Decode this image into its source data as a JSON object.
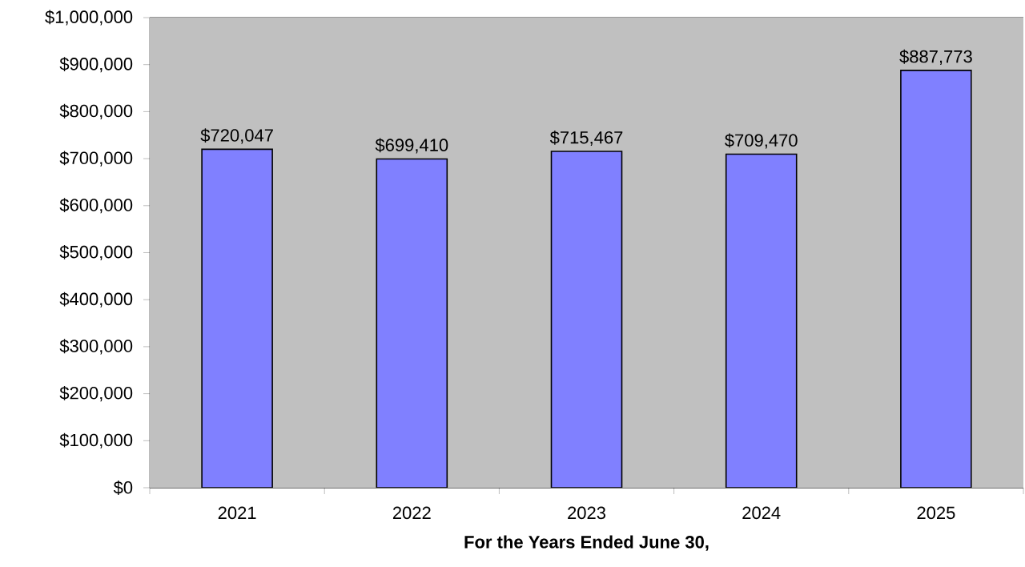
{
  "chart_data": {
    "type": "bar",
    "xlabel": "For the Years Ended June 30,",
    "categories": [
      "2021",
      "2022",
      "2023",
      "2024",
      "2025"
    ],
    "values": [
      720047,
      699410,
      715467,
      709470,
      887773
    ],
    "value_labels": [
      "$720,047",
      "$699,410",
      "$715,467",
      "$709,470",
      "$887,773"
    ],
    "color": "#8080ff",
    "ylim": [
      0,
      1000000
    ],
    "yticks": [
      {
        "value": 0,
        "label": "$0"
      },
      {
        "value": 100000,
        "label": "$100,000"
      },
      {
        "value": 200000,
        "label": "$200,000"
      },
      {
        "value": 300000,
        "label": "$300,000"
      },
      {
        "value": 400000,
        "label": "$400,000"
      },
      {
        "value": 500000,
        "label": "$500,000"
      },
      {
        "value": 600000,
        "label": "$600,000"
      },
      {
        "value": 700000,
        "label": "$700,000"
      },
      {
        "value": 800000,
        "label": "$800,000"
      },
      {
        "value": 900000,
        "label": "$900,000"
      },
      {
        "value": 1000000,
        "label": "$1,000,000"
      }
    ],
    "grid": "y",
    "legend": false
  }
}
